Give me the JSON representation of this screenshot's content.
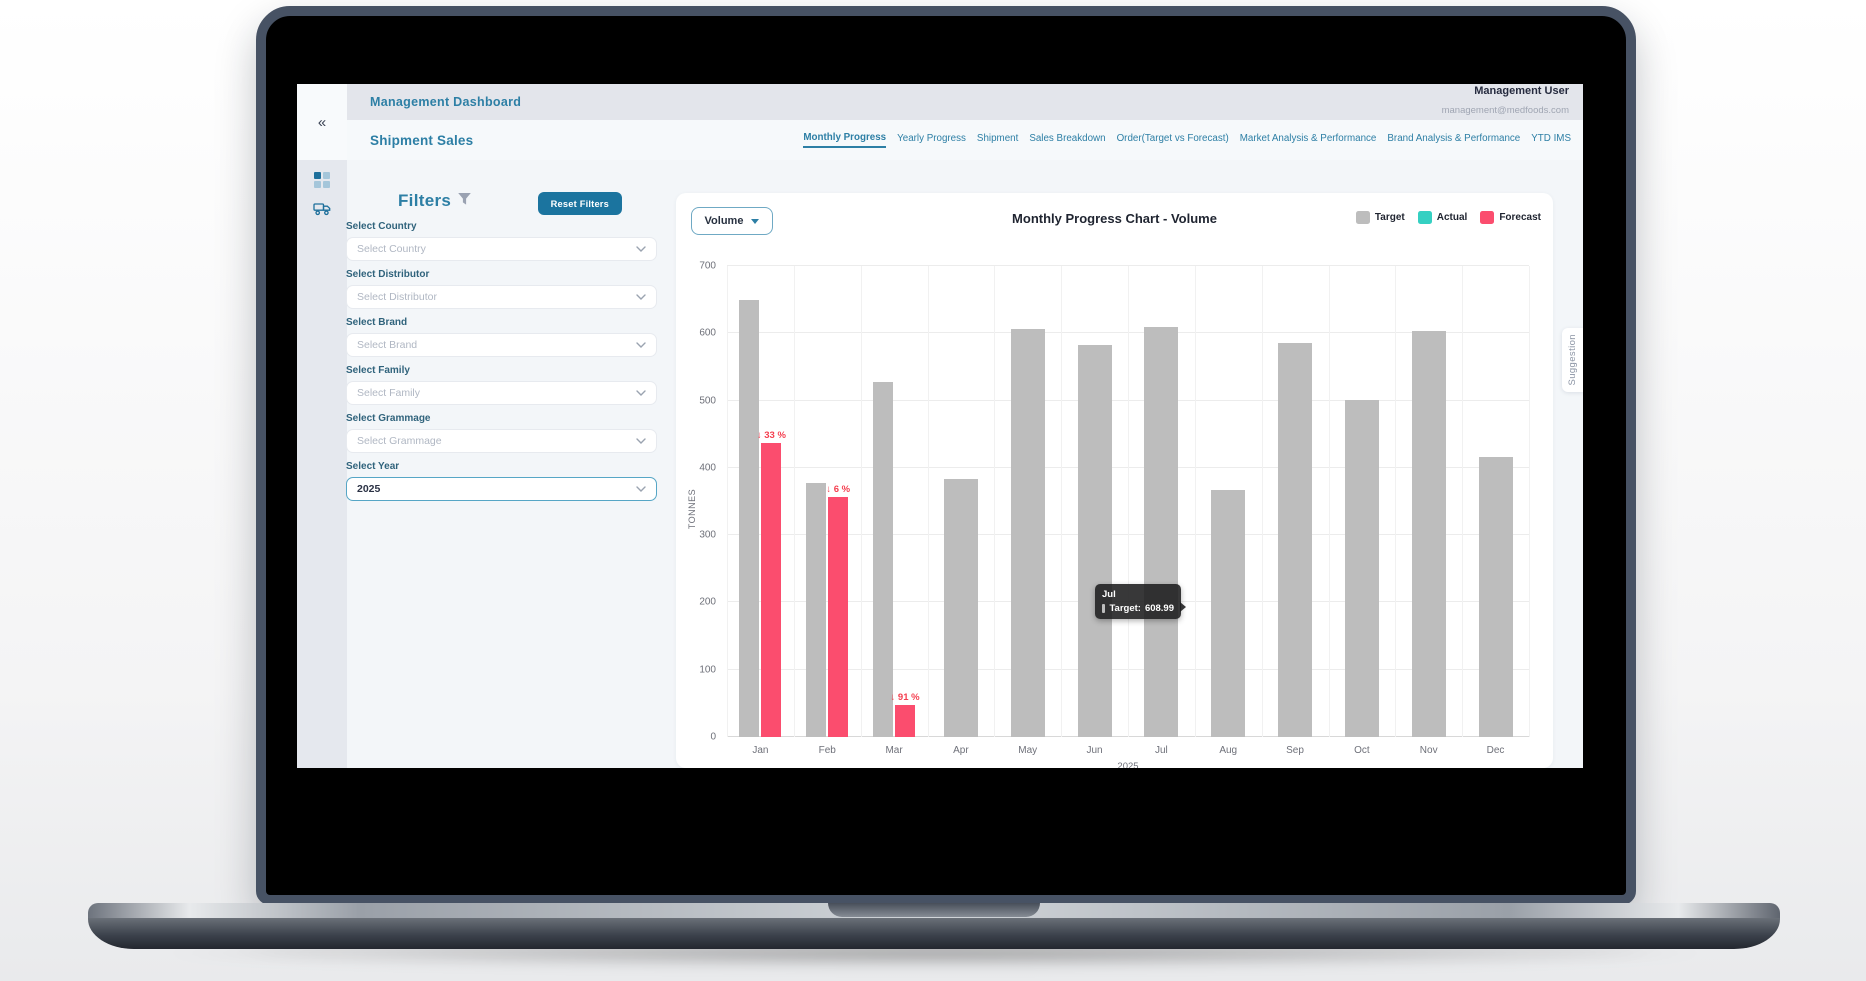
{
  "header": {
    "title": "Management Dashboard",
    "user": {
      "name": "Management User",
      "email": "management@medfoods.com"
    }
  },
  "subheader": {
    "title": "Shipment Sales",
    "tabs": [
      {
        "label": "Monthly Progress",
        "active": true
      },
      {
        "label": "Yearly Progress",
        "active": false
      },
      {
        "label": "Shipment",
        "active": false
      },
      {
        "label": "Sales Breakdown",
        "active": false
      },
      {
        "label": "Order(Target vs Forecast)",
        "active": false
      },
      {
        "label": "Market Analysis & Performance",
        "active": false
      },
      {
        "label": "Brand Analysis & Performance",
        "active": false
      },
      {
        "label": "YTD IMS",
        "active": false
      }
    ]
  },
  "sidebar": {
    "collapse_icon": "«",
    "items": [
      {
        "icon": "dashboard-grid-icon"
      },
      {
        "icon": "shipment-truck-icon"
      }
    ]
  },
  "filters": {
    "title": "Filters",
    "reset_label": "Reset Filters",
    "fields": [
      {
        "name": "country",
        "label": "Select Country",
        "placeholder": "Select Country",
        "value": "",
        "selected": false
      },
      {
        "name": "distributor",
        "label": "Select Distributor",
        "placeholder": "Select Distributor",
        "value": "",
        "selected": false
      },
      {
        "name": "brand",
        "label": "Select Brand",
        "placeholder": "Select Brand",
        "value": "",
        "selected": false
      },
      {
        "name": "family",
        "label": "Select Family",
        "placeholder": "Select Family",
        "value": "",
        "selected": false
      },
      {
        "name": "grammage",
        "label": "Select Grammage",
        "placeholder": "Select Grammage",
        "value": "",
        "selected": false
      },
      {
        "name": "year",
        "label": "Select Year",
        "placeholder": "Select Year",
        "value": "2025",
        "selected": true
      }
    ]
  },
  "chart": {
    "metric_selector": "Volume",
    "title": "Monthly Progress Chart - Volume",
    "legend": [
      {
        "label": "Target",
        "color": "#bdbdbd"
      },
      {
        "label": "Actual",
        "color": "#35d0c2"
      },
      {
        "label": "Forecast",
        "color": "#fb4d6e"
      }
    ],
    "tooltip": {
      "title": "Jul",
      "series_label": "Target:",
      "value": "608.99"
    }
  },
  "chart_data": {
    "type": "bar",
    "title": "Monthly Progress Chart - Volume",
    "categories": [
      "Jan",
      "Feb",
      "Mar",
      "Apr",
      "May",
      "Jun",
      "Jul",
      "Aug",
      "Sep",
      "Oct",
      "Nov",
      "Dec"
    ],
    "series": [
      {
        "name": "Target",
        "color": "#bdbdbd",
        "values": [
          650,
          378,
          528,
          384,
          607,
          582,
          608.99,
          367,
          585,
          501,
          603,
          416
        ]
      },
      {
        "name": "Actual",
        "color": "#35d0c2",
        "values": [
          null,
          null,
          null,
          null,
          null,
          null,
          null,
          null,
          null,
          null,
          null,
          null
        ]
      },
      {
        "name": "Forecast",
        "color": "#fb4d6e",
        "values": [
          437,
          357,
          48,
          null,
          null,
          null,
          null,
          null,
          null,
          null,
          null,
          null
        ]
      }
    ],
    "annotations": [
      {
        "category": "Jan",
        "text": "↓ 33 %"
      },
      {
        "category": "Feb",
        "text": "↓ 6 %"
      },
      {
        "category": "Mar",
        "text": "↓ 91 %"
      }
    ],
    "ylabel": "TONNES",
    "xlabel": "2025",
    "ylim": [
      0,
      700
    ],
    "yticks": [
      0,
      100,
      200,
      300,
      400,
      500,
      600,
      700
    ],
    "grid": true,
    "legend_position": "top-right"
  },
  "suggestion_tab": {
    "label": "Suggestion"
  }
}
